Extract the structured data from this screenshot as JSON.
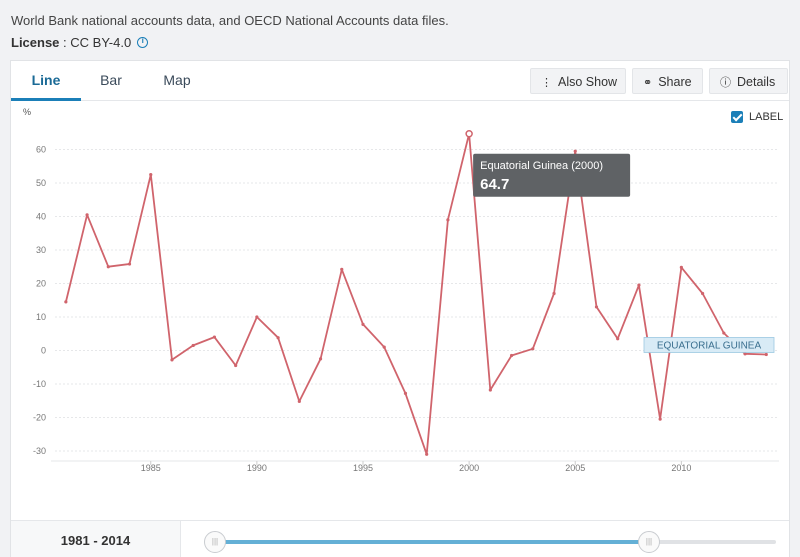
{
  "source_text": "World Bank national accounts data, and OECD National Accounts data files.",
  "license": {
    "label": "License",
    "value": " : CC BY-4.0"
  },
  "tabs": [
    {
      "label": "Line"
    },
    {
      "label": "Bar"
    },
    {
      "label": "Map"
    }
  ],
  "toolbar": {
    "also_show": "Also Show",
    "share": "Share",
    "details": "Details"
  },
  "label_toggle": {
    "label": "LABEL",
    "checked": true
  },
  "tooltip": {
    "title": "Equatorial Guinea (2000)",
    "value": "64.7"
  },
  "series_label": "EQUATORIAL GUINEA",
  "range": {
    "start": "1981",
    "sep": "-",
    "end": "2014"
  },
  "colors": {
    "line": "#d0646c",
    "accent": "#1b7fb8",
    "tooltip_bg": "#5f6265"
  },
  "chart_data": {
    "type": "line",
    "ylabel": "%",
    "xlabel": "",
    "ylim": [
      -33,
      70
    ],
    "xlim": [
      1980.3,
      2014.6
    ],
    "yticks": [
      -30,
      -20,
      -10,
      0,
      10,
      20,
      30,
      40,
      50,
      60
    ],
    "xticks": [
      1985,
      1990,
      1995,
      2000,
      2005,
      2010
    ],
    "grid": true,
    "series": [
      {
        "name": "EQUATORIAL GUINEA",
        "x": [
          1981,
          1982,
          1983,
          1984,
          1985,
          1986,
          1987,
          1988,
          1989,
          1990,
          1991,
          1992,
          1993,
          1994,
          1995,
          1996,
          1997,
          1998,
          1999,
          2000,
          2001,
          2002,
          2003,
          2004,
          2005,
          2006,
          2007,
          2008,
          2009,
          2010,
          2011,
          2012,
          2013,
          2014
        ],
        "values": [
          14.5,
          40.5,
          25,
          25.8,
          52.5,
          -2.8,
          1.5,
          4,
          -4.5,
          10,
          3.8,
          -15.2,
          -2.5,
          24.2,
          7.8,
          1,
          -12.8,
          -31,
          39,
          64.7,
          -11.8,
          -1.5,
          0.5,
          17,
          59.5,
          13,
          3.5,
          19.5,
          -20.5,
          24.8,
          17,
          5.2,
          -1,
          -1.2
        ]
      }
    ]
  }
}
